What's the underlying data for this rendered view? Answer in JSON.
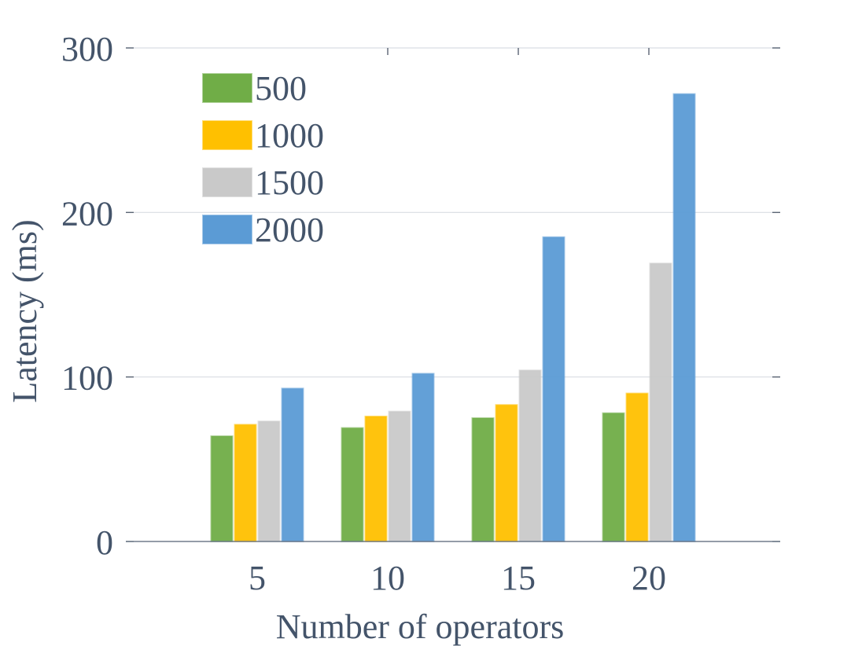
{
  "chart_data": {
    "type": "bar",
    "title": "",
    "xlabel": "Number of operators",
    "ylabel": "Latency (ms)",
    "categories": [
      "5",
      "10",
      "15",
      "20"
    ],
    "ylim": [
      0,
      300
    ],
    "yticks": [
      "0",
      "100",
      "200",
      "300"
    ],
    "grid": true,
    "legend_position": "top-left",
    "series": [
      {
        "name": "500",
        "color": "#70ad47",
        "values": [
          64,
          69,
          75,
          78
        ]
      },
      {
        "name": "1000",
        "color": "#ffc000",
        "values": [
          71,
          76,
          83,
          90
        ]
      },
      {
        "name": "1500",
        "color": "#c9c9c9",
        "values": [
          73,
          79,
          104,
          169
        ]
      },
      {
        "name": "2000",
        "color": "#5b9bd5",
        "values": [
          93,
          102,
          185,
          272
        ]
      }
    ]
  }
}
